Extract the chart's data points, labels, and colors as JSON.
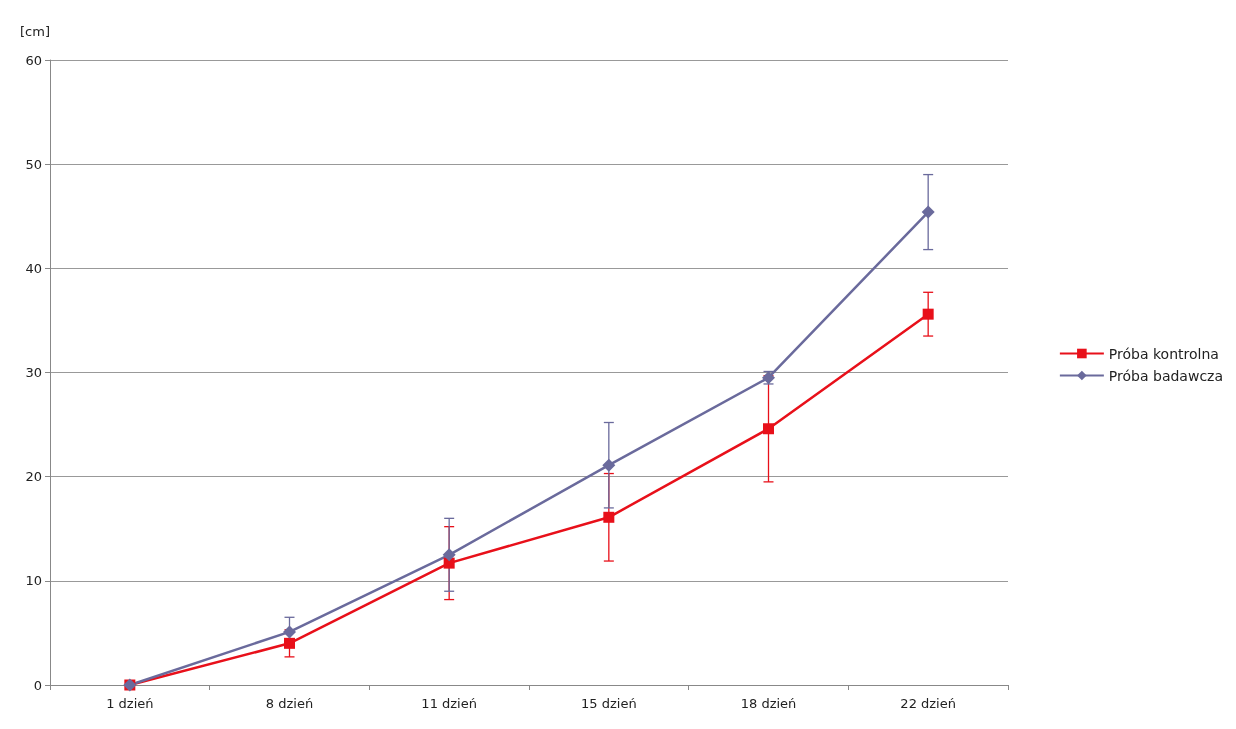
{
  "chart_data": {
    "type": "line",
    "ylabel": "[cm]",
    "categories": [
      "1 dzień",
      "8 dzień",
      "11 dzień",
      "15 dzień",
      "18 dzień",
      "22 dzień"
    ],
    "series": [
      {
        "name": "Próba kontrolna",
        "color": "#e8101a",
        "marker": "square",
        "values": [
          0,
          4.0,
          11.7,
          16.1,
          24.6,
          35.6
        ],
        "errors": [
          null,
          1.3,
          3.5,
          4.2,
          5.1,
          2.1
        ]
      },
      {
        "name": "Próba badawcza",
        "color": "#6a6a9c",
        "marker": "diamond",
        "values": [
          0,
          5.1,
          12.5,
          21.1,
          29.5,
          45.4
        ],
        "errors": [
          null,
          1.4,
          3.5,
          4.1,
          0.6,
          3.6
        ]
      }
    ],
    "ylim": [
      0,
      60
    ],
    "yticks": [
      0,
      10,
      20,
      30,
      40,
      50,
      60
    ],
    "grid": "y",
    "legend": "right",
    "line_style": "solid"
  }
}
